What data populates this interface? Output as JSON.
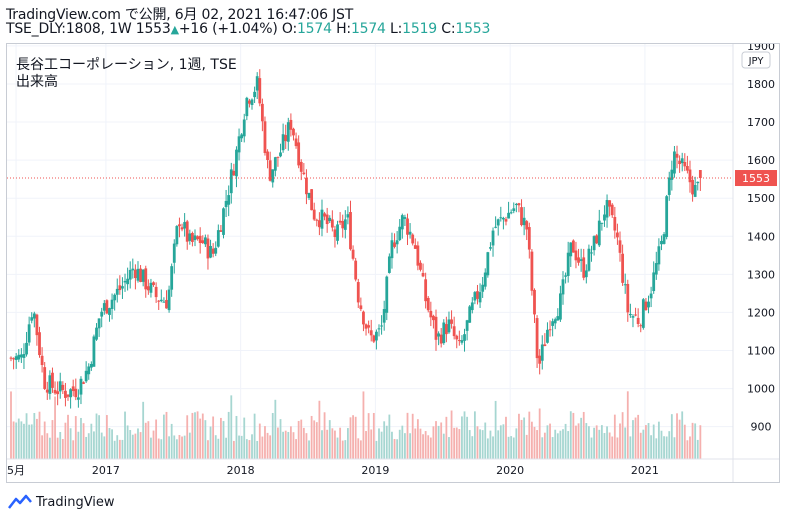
{
  "header": {
    "line1": "TradingView.com で公開, 6月 02, 2021 16:47:06 JST",
    "symbol_interval": "TSE_DLY:1808, 1W",
    "last": "1553",
    "change": "+16 (+1.04%)",
    "o_label": "O:",
    "o_value": "1574",
    "h_label": "H:",
    "h_value": "1574",
    "l_label": "L:",
    "l_value": "1519",
    "c_label": "C:",
    "c_value": "1553"
  },
  "legend": {
    "title": "長谷工コーポレーション, 1週, TSE",
    "volume_label": "出来高"
  },
  "currency_badge": "JPY",
  "last_price_label": "1553",
  "footer": {
    "brand": "TradingView"
  },
  "colors": {
    "up": "#26a69a",
    "down": "#ef5350",
    "vol_up": "#a6d6d1",
    "vol_down": "#f5b0ae"
  },
  "chart_data": {
    "type": "candlestick",
    "price_axis": {
      "ticks": [
        900,
        1000,
        1100,
        1200,
        1300,
        1400,
        1500,
        1600,
        1700,
        1800,
        1900
      ],
      "ylim": [
        815,
        1905
      ]
    },
    "time_axis": {
      "labels": [
        "5月",
        "2017",
        "2018",
        "2019",
        "2020",
        "2021"
      ],
      "label_dates": [
        "2016-05",
        "2017-01",
        "2018-01",
        "2019-01",
        "2020-01",
        "2021-01"
      ]
    },
    "last_price": 1553,
    "series": [
      {
        "anchors": [
          [
            "2016-05",
            1080
          ],
          [
            "2016-06",
            1220
          ],
          [
            "2016-07",
            1020
          ],
          [
            "2016-08",
            1000
          ],
          [
            "2016-09",
            990
          ],
          [
            "2016-10",
            1000
          ],
          [
            "2016-11",
            1060
          ],
          [
            "2016-12",
            1200
          ],
          [
            "2017-02",
            1270
          ],
          [
            "2017-03",
            1320
          ],
          [
            "2017-05",
            1240
          ],
          [
            "2017-06",
            1230
          ],
          [
            "2017-07",
            1450
          ],
          [
            "2017-08",
            1380
          ],
          [
            "2017-09",
            1390
          ],
          [
            "2017-10",
            1350
          ],
          [
            "2017-11",
            1470
          ],
          [
            "2017-12",
            1600
          ],
          [
            "2018-01",
            1760
          ],
          [
            "2018-02",
            1800
          ],
          [
            "2018-03",
            1560
          ],
          [
            "2018-04",
            1620
          ],
          [
            "2018-05",
            1700
          ],
          [
            "2018-06",
            1570
          ],
          [
            "2018-07",
            1460
          ],
          [
            "2018-08",
            1440
          ],
          [
            "2018-09",
            1400
          ],
          [
            "2018-10",
            1450
          ],
          [
            "2018-11",
            1240
          ],
          [
            "2018-12",
            1130
          ],
          [
            "2019-01",
            1150
          ],
          [
            "2019-02",
            1380
          ],
          [
            "2019-03",
            1450
          ],
          [
            "2019-04",
            1380
          ],
          [
            "2019-05",
            1230
          ],
          [
            "2019-06",
            1130
          ],
          [
            "2019-07",
            1170
          ],
          [
            "2019-08",
            1100
          ],
          [
            "2019-09",
            1200
          ],
          [
            "2019-10",
            1280
          ],
          [
            "2019-11",
            1420
          ],
          [
            "2019-12",
            1450
          ],
          [
            "2020-01",
            1480
          ],
          [
            "2020-02",
            1420
          ],
          [
            "2020-03",
            1050
          ],
          [
            "2020-04",
            1180
          ],
          [
            "2020-05",
            1230
          ],
          [
            "2020-06",
            1380
          ],
          [
            "2020-07",
            1310
          ],
          [
            "2020-08",
            1380
          ],
          [
            "2020-09",
            1480
          ],
          [
            "2020-10",
            1400
          ],
          [
            "2020-11",
            1200
          ],
          [
            "2020-12",
            1180
          ],
          [
            "2021-01",
            1260
          ],
          [
            "2021-02",
            1380
          ],
          [
            "2021-03",
            1620
          ],
          [
            "2021-04",
            1570
          ],
          [
            "2021-05",
            1520
          ],
          [
            "2021-06",
            1553
          ]
        ]
      }
    ]
  }
}
